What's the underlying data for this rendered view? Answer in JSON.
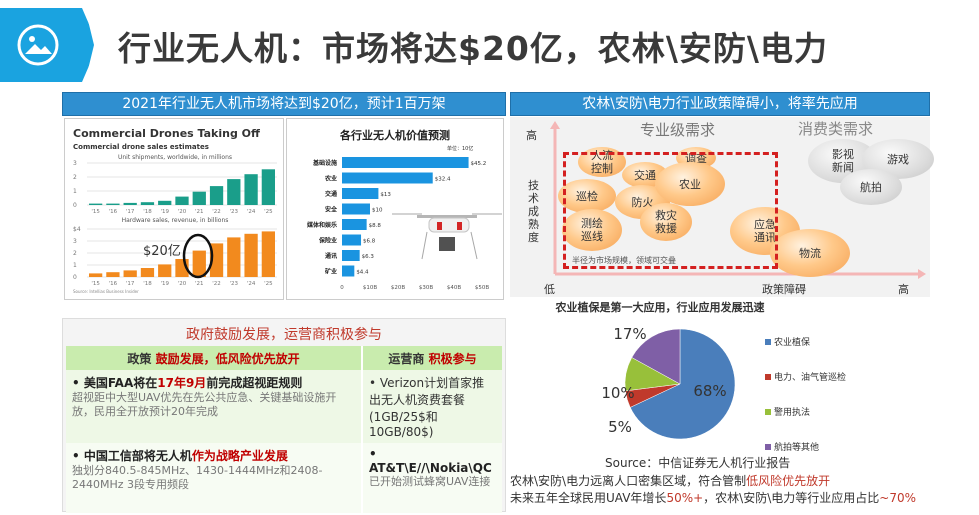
{
  "header": {
    "title": "行业无人机：市场将达$20亿，农林\\安防\\电力",
    "icon": "image-icon",
    "accent": "#1aa3e0"
  },
  "left": {
    "banner": "2021年行业无人机市场将达到$20亿，预计1百万架",
    "annotation": "$20亿",
    "policy_title": "政府鼓励发展，运营商积极参与",
    "table": {
      "col1_head_a": "政策 ",
      "col1_head_b": "鼓励发展，低风险优先放开",
      "col2_head_a": "运营商 ",
      "col2_head_b": "积极参与",
      "r1c1_a": "• 美国FAA将在",
      "r1c1_b": "17年9月",
      "r1c1_c": "前完成超视距规则",
      "r1c1_sub": "超视距中大型UAV优先在先公共应急、关键基础设施开放，民用全开放预计20年完成",
      "r1c2": "• Verizon计划首家推出无人机资费套餐 (1GB/25$和10GB/80$)",
      "r2c1_a": "• 中国工信部将无人机",
      "r2c1_b": "作为战略产业发展",
      "r2c1_sub": "独划分840.5-845MHz、1430-1444MHz和2408-2440MHz 3段专用频段",
      "r2c2": "• AT&T\\E//\\Nokia\\QC",
      "r2c2_sub": "已开始测试蜂窝UAV连接"
    }
  },
  "right": {
    "banner": "农林\\安防\\电力行业政策障碍小，将率先应用",
    "bubble": {
      "pro_label": "专业级需求",
      "consumer_label": "消费类需求",
      "y_high": "高",
      "y_axis": "技术成熟度",
      "x_low": "低",
      "x_axis": "政策障碍",
      "x_high": "高",
      "note": "半径为市场规模，领域可交叠",
      "items": [
        "人流控制",
        "交通",
        "调查",
        "巡检",
        "防火",
        "农业",
        "测绘巡线",
        "救灾救援",
        "应急通讯",
        "物流",
        "影视新闻",
        "游戏",
        "航拍"
      ]
    },
    "source": "Source：中信证券无人机行业报告",
    "line1_a": "农林\\安防\\电力远离人口密集区域，符合管制",
    "line1_b": "低风险优先放开",
    "line2_a": "未来五年全球民用UAV年增长",
    "line2_b": "50%+",
    "line2_c": "，农林\\安防\\电力等行业应用占比",
    "line2_d": "~70%"
  },
  "chart_data": [
    {
      "type": "bar",
      "title": "Commercial Drones Taking Off",
      "subtitle": "Commercial drone sales estimates",
      "panel_title": "Unit shipments, worldwide, in millions",
      "categories": [
        "'15",
        "'16",
        "'17",
        "'18",
        "'19",
        "'20",
        "'21",
        "'22",
        "'23",
        "'24",
        "'25"
      ],
      "values": [
        0.1,
        0.1,
        0.15,
        0.2,
        0.3,
        0.6,
        0.95,
        1.35,
        1.85,
        2.2,
        2.55
      ],
      "ylim": [
        0,
        3
      ],
      "yticks": [
        "0",
        "1",
        "2",
        "3"
      ],
      "color": "#1a9e8a"
    },
    {
      "type": "bar",
      "panel_title": "Hardware sales, revenue, in billions",
      "categories": [
        "'15",
        "'16",
        "'17",
        "'18",
        "'19",
        "'20",
        "'21",
        "'22",
        "'23",
        "'24",
        "'25"
      ],
      "values": [
        0.3,
        0.4,
        0.55,
        0.75,
        1.05,
        1.5,
        2.2,
        2.8,
        3.3,
        3.6,
        3.8
      ],
      "ylim": [
        0,
        4
      ],
      "yticks": [
        "0",
        "1",
        "2",
        "3",
        "$4"
      ],
      "color": "#f28a1e",
      "source": "Source: Intellias Business Insider"
    },
    {
      "type": "bar",
      "orientation": "horizontal",
      "title": "各行业无人机价值预测",
      "unit": "单位：10亿",
      "categories": [
        "基础设施",
        "农业",
        "交通",
        "安全",
        "媒体和娱乐",
        "保险业",
        "通讯",
        "矿业"
      ],
      "values": [
        45.2,
        32.4,
        13,
        10,
        8.8,
        6.8,
        6.3,
        4.4
      ],
      "labels": [
        "$45.2",
        "$32.4",
        "$13",
        "$10",
        "$8.8",
        "$6.8",
        "$6.3",
        "$4.4"
      ],
      "xlim": [
        0,
        50
      ],
      "xticks": [
        "0",
        "$10B",
        "$20B",
        "$30B",
        "$40B",
        "$50B"
      ],
      "color": "#1a94e0"
    },
    {
      "type": "pie",
      "title": "农业植保是第一大应用，行业应用发展迅速",
      "categories": [
        "农业植保",
        "电力、油气管巡检",
        "警用执法",
        "航拍等其他"
      ],
      "values": [
        68,
        5,
        10,
        17
      ],
      "labels": [
        "68%",
        "5%",
        "10%",
        "17%"
      ],
      "colors": [
        "#4a7ebb",
        "#c0392b",
        "#98c03a",
        "#7f5fa6"
      ]
    }
  ]
}
